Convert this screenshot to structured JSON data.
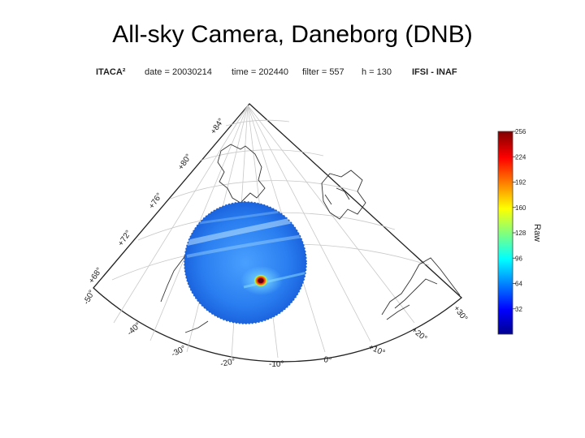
{
  "slide": {
    "title": "All-sky Camera, Daneborg (DNB)"
  },
  "meta": {
    "instrument": "ITACA²",
    "date": "date = 20030214",
    "time": "time = 202440",
    "filter": "filter = 557",
    "height": "h = 130",
    "institute": "IFSI - INAF"
  },
  "map": {
    "lat_labels": [
      "+84°",
      "+80°",
      "+76°",
      "+72°",
      "+68°"
    ],
    "lon_labels": [
      "-50°",
      "-40°",
      "-30°",
      "-20°",
      "-10°",
      "0°",
      "+10°",
      "+20°",
      "+30°"
    ]
  },
  "colorbar": {
    "label": "Raw",
    "ticks": [
      "256",
      "224",
      "192",
      "160",
      "128",
      "96",
      "64",
      "32"
    ],
    "min": 0,
    "max": 256
  },
  "colors": {
    "sky_base": "#1e6ee6",
    "sky_light": "#4aa0ff",
    "spot": "#b4001e",
    "coast": "#333333",
    "grid": "#c8c8c8"
  }
}
